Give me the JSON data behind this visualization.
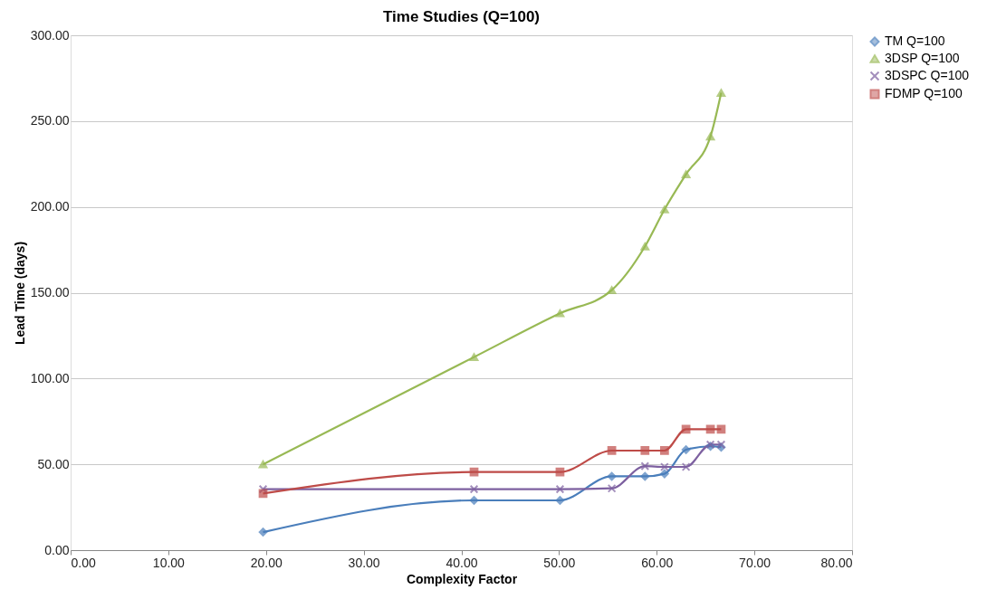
{
  "chart_data": {
    "type": "line",
    "title": "Time Studies (Q=100)",
    "xlabel": "Complexity Factor",
    "ylabel": "Lead Time (days)",
    "x": [
      19.7,
      41.3,
      50.1,
      55.4,
      58.8,
      60.8,
      63.0,
      65.5,
      66.6
    ],
    "series": [
      {
        "name": "TM Q=100",
        "color": "#4a7ebb",
        "marker": "diamond",
        "values": [
          10.5,
          29,
          29,
          43,
          43,
          44.5,
          58.5,
          60.5,
          60
        ]
      },
      {
        "name": "3DSP Q=100",
        "color": "#98b954",
        "marker": "triangle",
        "values": [
          50,
          112.5,
          138,
          151.5,
          177,
          198.5,
          219,
          241,
          266.5
        ]
      },
      {
        "name": "3DSPC Q=100",
        "color": "#7d60a0",
        "marker": "cross",
        "values": [
          35.5,
          35.5,
          35.5,
          36,
          49,
          48.5,
          48.5,
          61.5,
          61.5
        ]
      },
      {
        "name": "FDMP Q=100",
        "color": "#be4b48",
        "marker": "square",
        "values": [
          33,
          45.5,
          45.5,
          58,
          58,
          58,
          70.5,
          70.5,
          70.5
        ]
      }
    ],
    "xlim": [
      0,
      80
    ],
    "ylim": [
      0,
      300
    ],
    "xticks": [
      {
        "value": 0,
        "label": "0.00"
      },
      {
        "value": 10,
        "label": "10.00"
      },
      {
        "value": 20,
        "label": "20.00"
      },
      {
        "value": 30,
        "label": "30.00"
      },
      {
        "value": 40,
        "label": "40.00"
      },
      {
        "value": 50,
        "label": "50.00"
      },
      {
        "value": 60,
        "label": "60.00"
      },
      {
        "value": 70,
        "label": "70.00"
      },
      {
        "value": 80,
        "label": "80.00"
      }
    ],
    "yticks": [
      {
        "value": 0,
        "label": "0.00"
      },
      {
        "value": 50,
        "label": "50.00"
      },
      {
        "value": 100,
        "label": "100.00"
      },
      {
        "value": 150,
        "label": "150.00"
      },
      {
        "value": 200,
        "label": "200.00"
      },
      {
        "value": 250,
        "label": "250.00"
      },
      {
        "value": 300,
        "label": "300.00"
      }
    ],
    "grid": "y",
    "legend": "right",
    "line_style": "solid"
  }
}
